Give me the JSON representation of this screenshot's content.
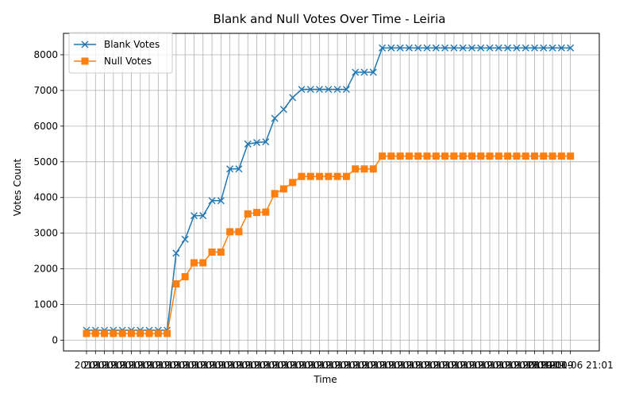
{
  "chart_data": {
    "type": "line",
    "title": "Blank and Null Votes Over Time - Leiria",
    "xlabel": "Time",
    "ylabel": "Votes Count",
    "ylim": [
      -300,
      8600
    ],
    "yticks": [
      0,
      1000,
      2000,
      3000,
      4000,
      5000,
      6000,
      7000,
      8000
    ],
    "grid": true,
    "legend_position": "top-left",
    "x_tick_label_visible": "2019",
    "x_tick_label_last": "2019-10-06 21:01",
    "x_count": 55,
    "series": [
      {
        "name": "Blank Votes",
        "color": "#1f77b4",
        "marker": "x",
        "values": [
          280,
          280,
          280,
          280,
          280,
          280,
          280,
          280,
          280,
          280,
          2440,
          2830,
          3490,
          3490,
          3910,
          3910,
          4800,
          4800,
          5500,
          5540,
          5560,
          6220,
          6470,
          6800,
          7030,
          7030,
          7030,
          7030,
          7030,
          7030,
          7510,
          7510,
          7510,
          8190,
          8190,
          8190,
          8190,
          8190,
          8190,
          8190,
          8190,
          8190,
          8190,
          8190,
          8190,
          8190,
          8190,
          8190,
          8190,
          8190,
          8190,
          8190,
          8190,
          8190,
          8190
        ]
      },
      {
        "name": "Null Votes",
        "color": "#ff7f0e",
        "marker": "s",
        "values": [
          190,
          190,
          190,
          190,
          190,
          190,
          190,
          190,
          190,
          190,
          1580,
          1780,
          2170,
          2170,
          2470,
          2470,
          3040,
          3040,
          3540,
          3580,
          3590,
          4110,
          4240,
          4420,
          4590,
          4590,
          4590,
          4590,
          4590,
          4590,
          4800,
          4800,
          4800,
          5160,
          5160,
          5160,
          5160,
          5160,
          5160,
          5160,
          5160,
          5160,
          5160,
          5160,
          5160,
          5160,
          5160,
          5160,
          5160,
          5160,
          5160,
          5160,
          5160,
          5160,
          5160
        ]
      }
    ]
  }
}
